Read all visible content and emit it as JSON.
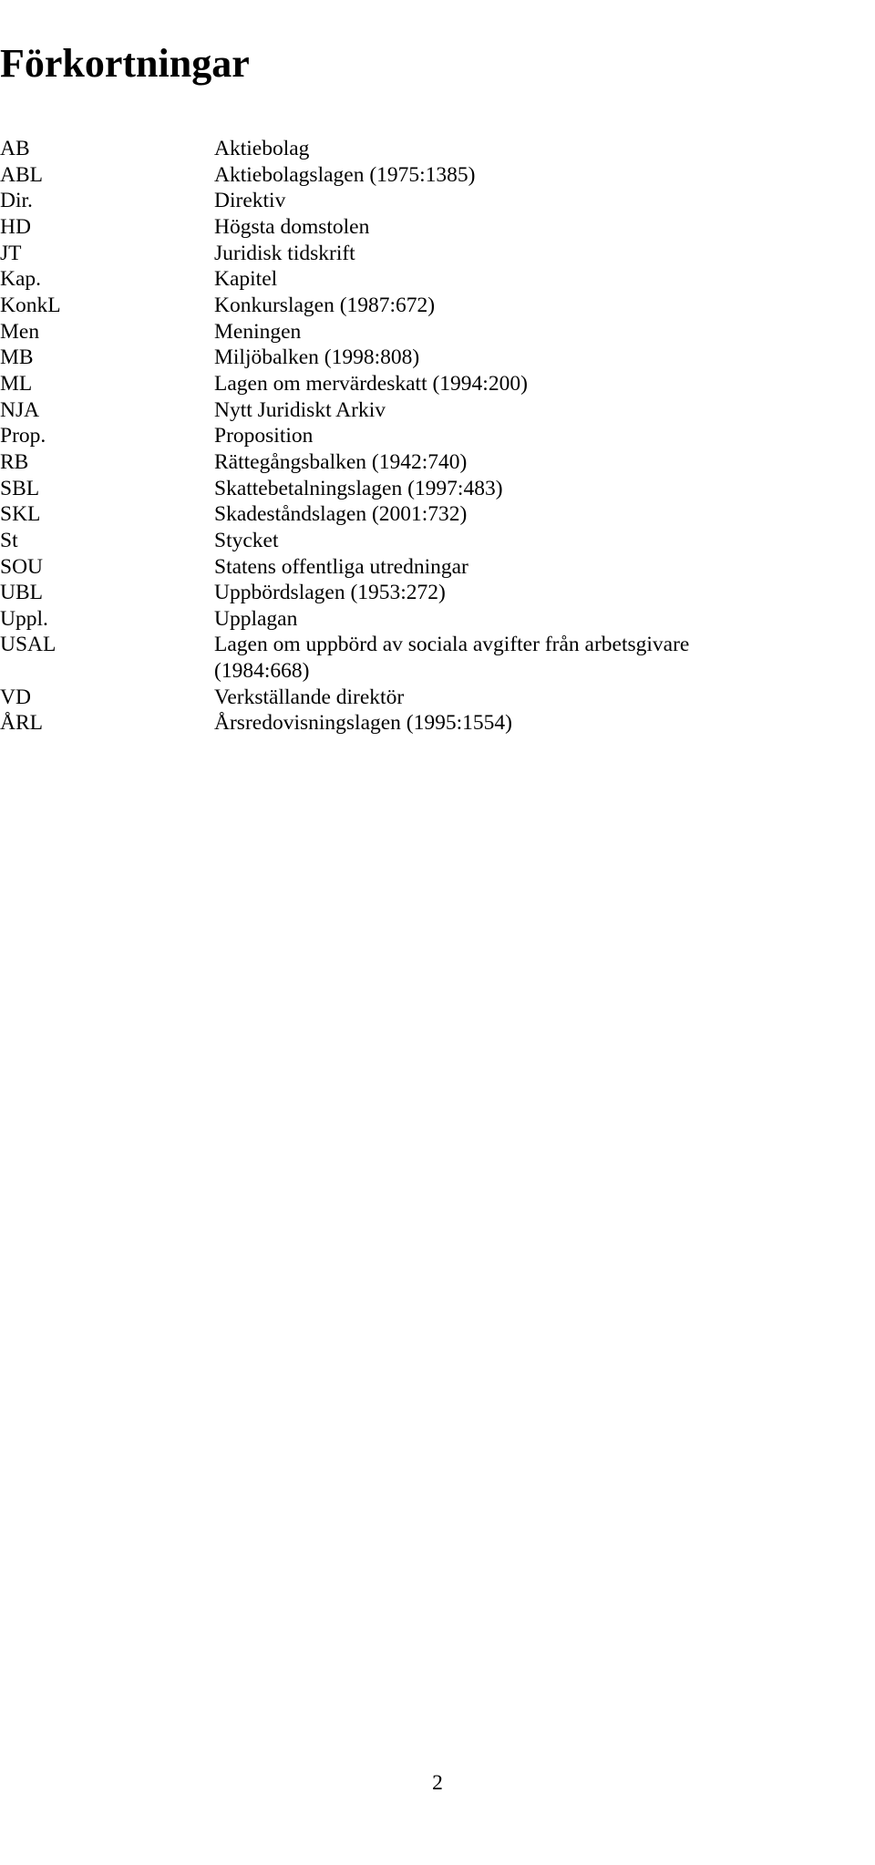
{
  "title": "Förkortningar",
  "page_number": "2",
  "rows": [
    {
      "abbr": "AB",
      "def": "Aktiebolag"
    },
    {
      "abbr": "ABL",
      "def": "Aktiebolagslagen (1975:1385)"
    },
    {
      "abbr": "Dir.",
      "def": "Direktiv"
    },
    {
      "abbr": "HD",
      "def": "Högsta domstolen"
    },
    {
      "abbr": "JT",
      "def": "Juridisk tidskrift"
    },
    {
      "abbr": "Kap.",
      "def": "Kapitel"
    },
    {
      "abbr": "KonkL",
      "def": "Konkurslagen (1987:672)"
    },
    {
      "abbr": "Men",
      "def": "Meningen"
    },
    {
      "abbr": "MB",
      "def": "Miljöbalken (1998:808)"
    },
    {
      "abbr": "ML",
      "def": "Lagen om mervärdeskatt (1994:200)"
    },
    {
      "abbr": "NJA",
      "def": "Nytt Juridiskt Arkiv"
    },
    {
      "abbr": "Prop.",
      "def": "Proposition"
    },
    {
      "abbr": "RB",
      "def": "Rättegångsbalken (1942:740)"
    },
    {
      "abbr": "SBL",
      "def": "Skattebetalningslagen (1997:483)"
    },
    {
      "abbr": "SKL",
      "def": "Skadeståndslagen (2001:732)"
    },
    {
      "abbr": "St",
      "def": "Stycket"
    },
    {
      "abbr": "SOU",
      "def": "Statens offentliga utredningar"
    },
    {
      "abbr": "UBL",
      "def": "Uppbördslagen (1953:272)"
    },
    {
      "abbr": "Uppl.",
      "def": "Upplagan"
    },
    {
      "abbr": "USAL",
      "def": "Lagen om uppbörd av sociala avgifter från arbetsgivare (1984:668)"
    },
    {
      "abbr": "VD",
      "def": "Verkställande direktör"
    },
    {
      "abbr": "ÅRL",
      "def": "Årsredovisningslagen (1995:1554)"
    }
  ]
}
